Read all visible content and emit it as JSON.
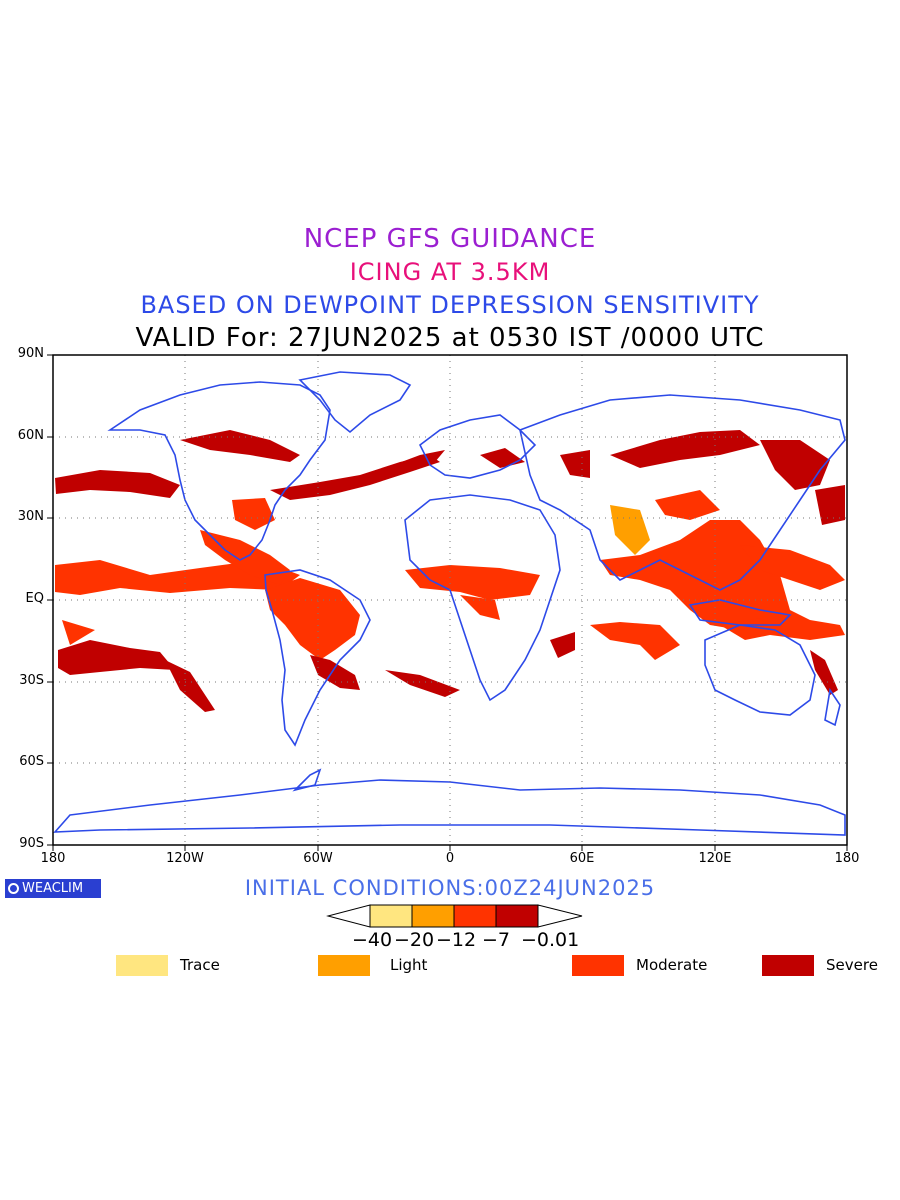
{
  "titles": {
    "line1": "NCEP GFS GUIDANCE",
    "line2": "ICING AT 3.5KM",
    "line3": "BASED ON DEWPOINT DEPRESSION SENSITIVITY",
    "line4": "VALID For: 27JUN2025 at 0530 IST /0000 UTC"
  },
  "colors": {
    "title1": "#9b1fd1",
    "title2": "#e8107a",
    "title3": "#2d4ae8",
    "coast": "#2d4ae8",
    "trace": "#ffe680",
    "light": "#ff9f00",
    "moderate": "#ff3300",
    "severe": "#c00000",
    "init": "#4a6fe8"
  },
  "axes": {
    "lat_labels": [
      "90N",
      "60N",
      "30N",
      "EQ",
      "30S",
      "60S",
      "90S"
    ],
    "lon_labels": [
      "180",
      "120W",
      "60W",
      "0",
      "60E",
      "120E",
      "180"
    ]
  },
  "logo": {
    "text": "WEACLIM"
  },
  "initial_conditions": "INITIAL CONDITIONS:00Z24JUN2025",
  "colorbar": {
    "ticks": [
      "−40",
      "−20",
      "−12",
      "−7",
      "−0.01"
    ]
  },
  "legend": [
    {
      "label": "Trace",
      "color_key": "trace"
    },
    {
      "label": "Light",
      "color_key": "light"
    },
    {
      "label": "Moderate",
      "color_key": "moderate"
    },
    {
      "label": "Severe",
      "color_key": "severe"
    }
  ]
}
